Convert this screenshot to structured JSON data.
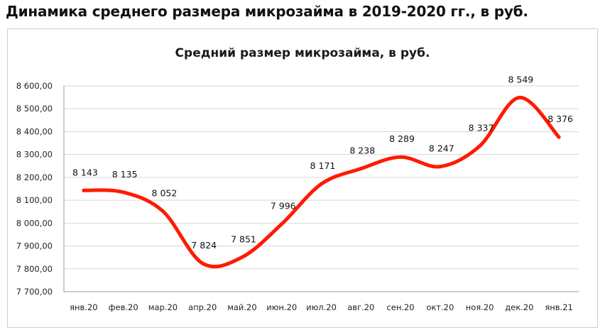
{
  "heading": "Динамика среднего размера микрозайма в 2019-2020 гг., в руб.",
  "chart_data": {
    "type": "line",
    "title": "Средний размер микрозайма, в руб.",
    "xlabel": "",
    "ylabel": "",
    "categories": [
      "янв.20",
      "фев.20",
      "мар.20",
      "апр.20",
      "май.20",
      "июн.20",
      "июл.20",
      "авг.20",
      "сен.20",
      "окт.20",
      "ноя.20",
      "дек.20",
      "янв.21"
    ],
    "series": [
      {
        "values": [
          8143,
          8135,
          8052,
          7824,
          7851,
          7996,
          8171,
          8238,
          8289,
          8247,
          8337,
          8549,
          8376
        ],
        "labels": [
          "8 143",
          "8 135",
          "8 052",
          "7 824",
          "7 851",
          "7 996",
          "8 171",
          "8 238",
          "8 289",
          "8 247",
          "8 337",
          "8 549",
          "8 376"
        ],
        "color": "#ff1a00"
      }
    ],
    "ylim": [
      7700,
      8600
    ],
    "yticks": [
      7700,
      7800,
      7900,
      8000,
      8100,
      8200,
      8300,
      8400,
      8500,
      8600
    ],
    "ytick_labels": [
      "7 700,00",
      "7 800,00",
      "7 900,00",
      "8 000,00",
      "8 100,00",
      "8 200,00",
      "8 300,00",
      "8 400,00",
      "8 500,00",
      "8 600,00"
    ],
    "grid": true,
    "legend": "none",
    "gridline_color": "#d6d6d6",
    "axis_color": "#9a9a9a"
  }
}
